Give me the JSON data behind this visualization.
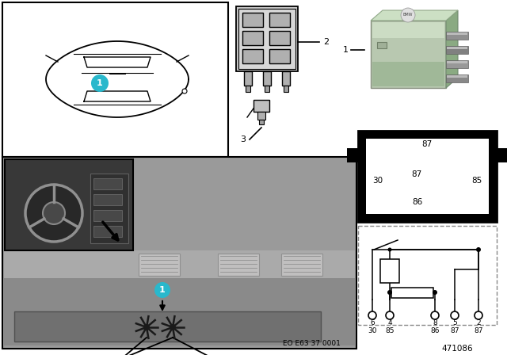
{
  "bg_color": "#ffffff",
  "cyan_color": "#29b8cc",
  "black": "#000000",
  "white": "#ffffff",
  "green_relay": "#b8ceb0",
  "gray_dash": "#9a9a9a",
  "gray_dark": "#5a5a5a",
  "gray_mid": "#787878",
  "gray_light": "#c8c8c8",
  "gray_inset": "#404040",
  "eo_text": "EO E63 37 0001",
  "ref_text": "471086",
  "circuit_pins_top": [
    "6",
    "4",
    "",
    "8",
    "5",
    "2"
  ],
  "circuit_pins_bot": [
    "30",
    "85",
    "",
    "86",
    "87",
    "87"
  ]
}
